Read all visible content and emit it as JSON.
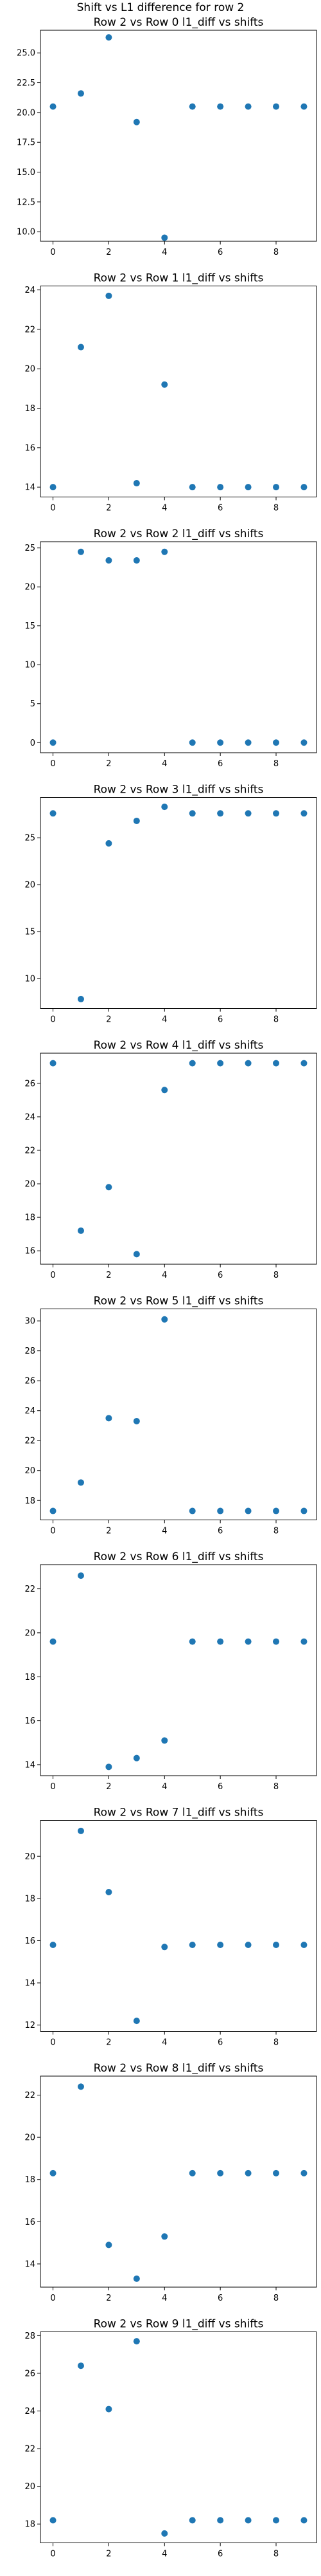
{
  "figure": {
    "suptitle": "Shift vs L1 difference for row 2",
    "marker_color": "#1f77b4",
    "axes_color": "#000000"
  },
  "chart_data": [
    {
      "type": "scatter",
      "title": "Row 2 vs Row 0 l1_diff vs shifts",
      "xlabel": "",
      "ylabel": "",
      "x": [
        0,
        1,
        2,
        3,
        4,
        5,
        6,
        7,
        8,
        9
      ],
      "y": [
        20.5,
        21.6,
        26.3,
        19.2,
        9.5,
        20.5,
        20.5,
        20.5,
        20.5,
        20.5
      ],
      "xlim": [
        -0.45,
        9.45
      ],
      "ylim": [
        9.2,
        26.9
      ],
      "xticks": [
        0,
        2,
        4,
        6,
        8
      ],
      "xtick_labels": [
        "0",
        "2",
        "4",
        "6",
        "8"
      ],
      "yticks": [
        10.0,
        12.5,
        15.0,
        17.5,
        20.0,
        22.5,
        25.0
      ],
      "ytick_labels": [
        "10.0",
        "12.5",
        "15.0",
        "17.5",
        "20.0",
        "22.5",
        "25.0"
      ],
      "grid": false
    },
    {
      "type": "scatter",
      "title": "Row 2 vs Row 1 l1_diff vs shifts",
      "xlabel": "",
      "ylabel": "",
      "x": [
        0,
        1,
        2,
        3,
        4,
        5,
        6,
        7,
        8,
        9
      ],
      "y": [
        14.0,
        21.1,
        23.7,
        14.2,
        19.2,
        14.0,
        14.0,
        14.0,
        14.0,
        14.0
      ],
      "xlim": [
        -0.45,
        9.45
      ],
      "ylim": [
        13.5,
        24.2
      ],
      "xticks": [
        0,
        2,
        4,
        6,
        8
      ],
      "xtick_labels": [
        "0",
        "2",
        "4",
        "6",
        "8"
      ],
      "yticks": [
        14,
        16,
        18,
        20,
        22,
        24
      ],
      "ytick_labels": [
        "14",
        "16",
        "18",
        "20",
        "22",
        "24"
      ],
      "grid": false
    },
    {
      "type": "scatter",
      "title": "Row 2 vs Row 2 l1_diff vs shifts",
      "xlabel": "",
      "ylabel": "",
      "x": [
        0,
        1,
        2,
        3,
        4,
        5,
        6,
        7,
        8,
        9
      ],
      "y": [
        0.0,
        24.5,
        23.4,
        23.4,
        24.5,
        0.0,
        0.0,
        0.0,
        0.0,
        0.0
      ],
      "xlim": [
        -0.45,
        9.45
      ],
      "ylim": [
        -1.3,
        25.8
      ],
      "xticks": [
        0,
        2,
        4,
        6,
        8
      ],
      "xtick_labels": [
        "0",
        "2",
        "4",
        "6",
        "8"
      ],
      "yticks": [
        0,
        5,
        10,
        15,
        20,
        25
      ],
      "ytick_labels": [
        "0",
        "5",
        "10",
        "15",
        "20",
        "25"
      ],
      "grid": false
    },
    {
      "type": "scatter",
      "title": "Row 2 vs Row 3 l1_diff vs shifts",
      "xlabel": "",
      "ylabel": "",
      "x": [
        0,
        1,
        2,
        3,
        4,
        5,
        6,
        7,
        8,
        9
      ],
      "y": [
        27.6,
        7.8,
        24.4,
        26.8,
        28.3,
        27.6,
        27.6,
        27.6,
        27.6,
        27.6
      ],
      "xlim": [
        -0.45,
        9.45
      ],
      "ylim": [
        6.8,
        29.3
      ],
      "xticks": [
        0,
        2,
        4,
        6,
        8
      ],
      "xtick_labels": [
        "0",
        "2",
        "4",
        "6",
        "8"
      ],
      "yticks": [
        10,
        15,
        20,
        25
      ],
      "ytick_labels": [
        "10",
        "15",
        "20",
        "25"
      ],
      "grid": false
    },
    {
      "type": "scatter",
      "title": "Row 2 vs Row 4 l1_diff vs shifts",
      "xlabel": "",
      "ylabel": "",
      "x": [
        0,
        1,
        2,
        3,
        4,
        5,
        6,
        7,
        8,
        9
      ],
      "y": [
        27.2,
        17.2,
        19.8,
        15.8,
        25.6,
        27.2,
        27.2,
        27.2,
        27.2,
        27.2
      ],
      "xlim": [
        -0.45,
        9.45
      ],
      "ylim": [
        15.2,
        27.8
      ],
      "xticks": [
        0,
        2,
        4,
        6,
        8
      ],
      "xtick_labels": [
        "0",
        "2",
        "4",
        "6",
        "8"
      ],
      "yticks": [
        16,
        18,
        20,
        22,
        24,
        26
      ],
      "ytick_labels": [
        "16",
        "18",
        "20",
        "22",
        "24",
        "26"
      ],
      "grid": false
    },
    {
      "type": "scatter",
      "title": "Row 2 vs Row 5 l1_diff vs shifts",
      "xlabel": "",
      "ylabel": "",
      "x": [
        0,
        1,
        2,
        3,
        4,
        5,
        6,
        7,
        8,
        9
      ],
      "y": [
        17.3,
        19.2,
        23.5,
        23.3,
        30.1,
        17.3,
        17.3,
        17.3,
        17.3,
        17.3
      ],
      "xlim": [
        -0.45,
        9.45
      ],
      "ylim": [
        16.7,
        30.8
      ],
      "xticks": [
        0,
        2,
        4,
        6,
        8
      ],
      "xtick_labels": [
        "0",
        "2",
        "4",
        "6",
        "8"
      ],
      "yticks": [
        18,
        20,
        22,
        24,
        26,
        28,
        30
      ],
      "ytick_labels": [
        "18",
        "20",
        "22",
        "24",
        "26",
        "28",
        "30"
      ],
      "grid": false
    },
    {
      "type": "scatter",
      "title": "Row 2 vs Row 6 l1_diff vs shifts",
      "xlabel": "",
      "ylabel": "",
      "x": [
        0,
        1,
        2,
        3,
        4,
        5,
        6,
        7,
        8,
        9
      ],
      "y": [
        19.6,
        22.6,
        13.9,
        14.3,
        15.1,
        19.6,
        19.6,
        19.6,
        19.6,
        19.6
      ],
      "xlim": [
        -0.45,
        9.45
      ],
      "ylim": [
        13.5,
        23.1
      ],
      "xticks": [
        0,
        2,
        4,
        6,
        8
      ],
      "xtick_labels": [
        "0",
        "2",
        "4",
        "6",
        "8"
      ],
      "yticks": [
        14,
        16,
        18,
        20,
        22
      ],
      "ytick_labels": [
        "14",
        "16",
        "18",
        "20",
        "22"
      ],
      "grid": false
    },
    {
      "type": "scatter",
      "title": "Row 2 vs Row 7 l1_diff vs shifts",
      "xlabel": "",
      "ylabel": "",
      "x": [
        0,
        1,
        2,
        3,
        4,
        5,
        6,
        7,
        8,
        9
      ],
      "y": [
        15.8,
        21.2,
        18.3,
        12.2,
        15.7,
        15.8,
        15.8,
        15.8,
        15.8,
        15.8
      ],
      "xlim": [
        -0.45,
        9.45
      ],
      "ylim": [
        11.7,
        21.7
      ],
      "xticks": [
        0,
        2,
        4,
        6,
        8
      ],
      "xtick_labels": [
        "0",
        "2",
        "4",
        "6",
        "8"
      ],
      "yticks": [
        12,
        14,
        16,
        18,
        20
      ],
      "ytick_labels": [
        "12",
        "14",
        "16",
        "18",
        "20"
      ],
      "grid": false
    },
    {
      "type": "scatter",
      "title": "Row 2 vs Row 8 l1_diff vs shifts",
      "xlabel": "",
      "ylabel": "",
      "x": [
        0,
        1,
        2,
        3,
        4,
        5,
        6,
        7,
        8,
        9
      ],
      "y": [
        18.3,
        22.4,
        14.9,
        13.3,
        15.3,
        18.3,
        18.3,
        18.3,
        18.3,
        18.3
      ],
      "xlim": [
        -0.45,
        9.45
      ],
      "ylim": [
        12.9,
        22.9
      ],
      "xticks": [
        0,
        2,
        4,
        6,
        8
      ],
      "xtick_labels": [
        "0",
        "2",
        "4",
        "6",
        "8"
      ],
      "yticks": [
        14,
        16,
        18,
        20,
        22
      ],
      "ytick_labels": [
        "14",
        "16",
        "18",
        "20",
        "22"
      ],
      "grid": false
    },
    {
      "type": "scatter",
      "title": "Row 2 vs Row 9 l1_diff vs shifts",
      "xlabel": "",
      "ylabel": "",
      "x": [
        0,
        1,
        2,
        3,
        4,
        5,
        6,
        7,
        8,
        9
      ],
      "y": [
        18.2,
        26.4,
        24.1,
        27.7,
        17.5,
        18.2,
        18.2,
        18.2,
        18.2,
        18.2
      ],
      "xlim": [
        -0.45,
        9.45
      ],
      "ylim": [
        17.0,
        28.2
      ],
      "xticks": [
        0,
        2,
        4,
        6,
        8
      ],
      "xtick_labels": [
        "0",
        "2",
        "4",
        "6",
        "8"
      ],
      "yticks": [
        18,
        20,
        22,
        24,
        26,
        28
      ],
      "ytick_labels": [
        "18",
        "20",
        "22",
        "24",
        "26",
        "28"
      ],
      "grid": false
    }
  ]
}
